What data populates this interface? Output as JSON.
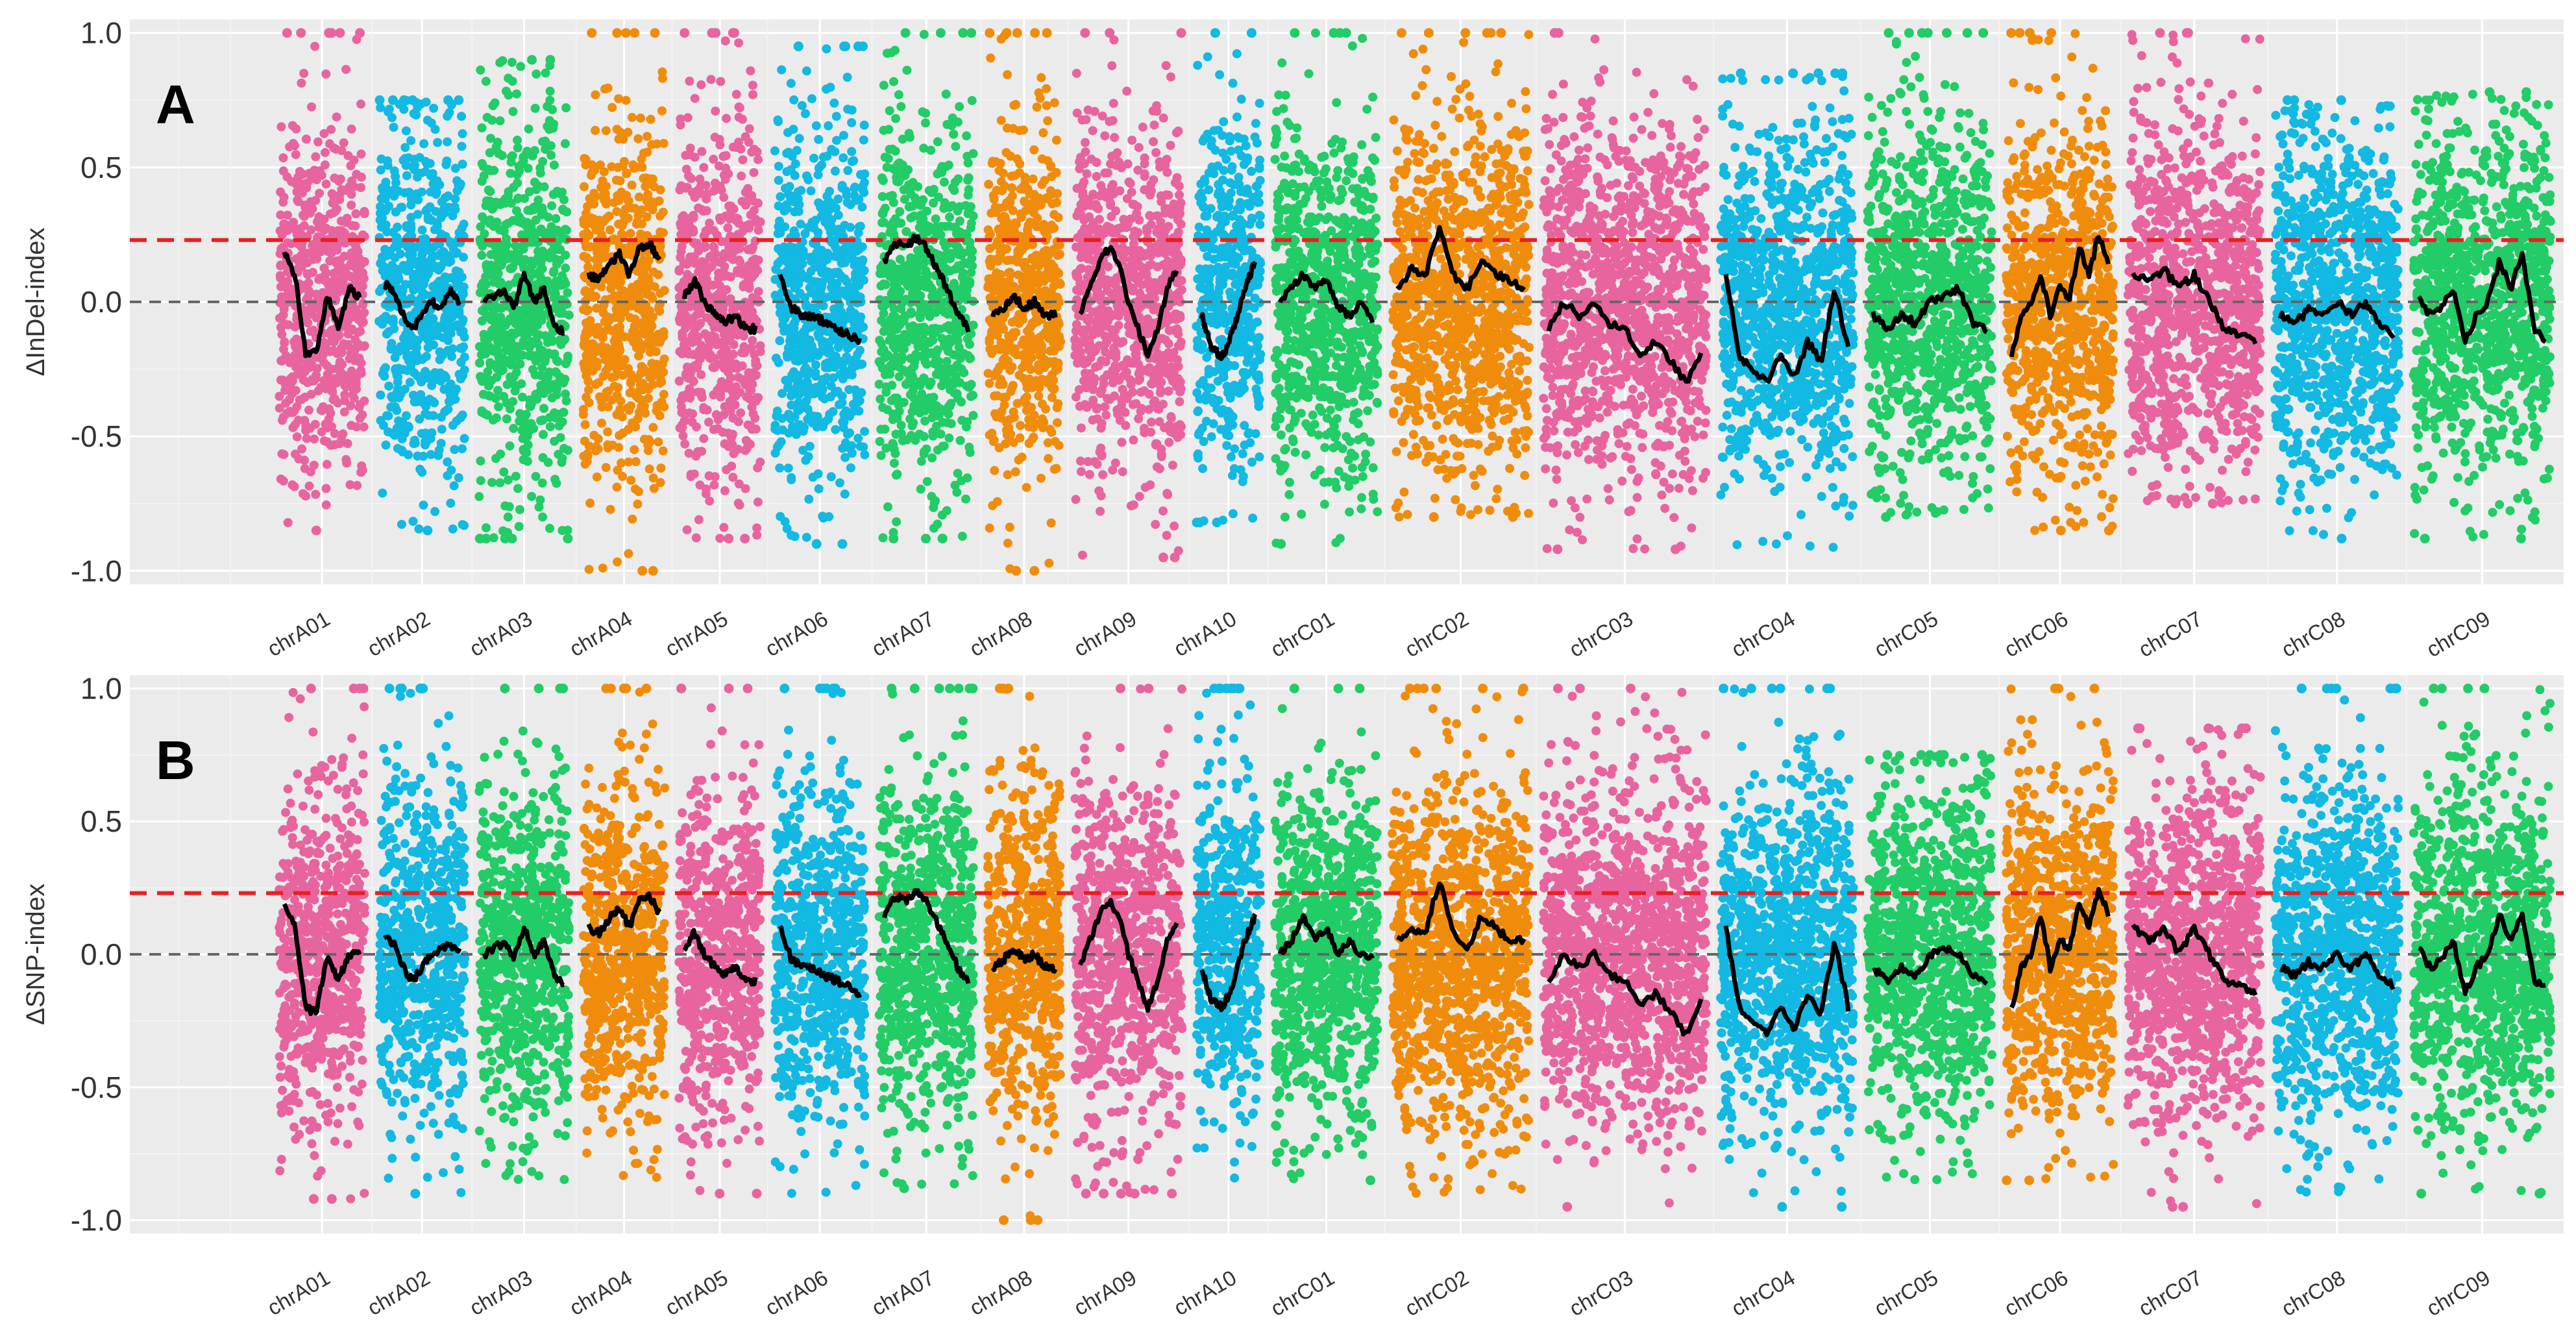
{
  "colors": {
    "pink": "#e8649e",
    "blue": "#12b9e2",
    "green": "#22cc66",
    "orange": "#f08c0c",
    "threshold": "#e82020",
    "zero_line": "#666666",
    "trend": "#000000"
  },
  "chart_data": [
    {
      "type": "scatter",
      "panel_label": "A",
      "ylabel": "ΔInDel-index",
      "xlabel": "",
      "ylim": [
        -1.05,
        1.05
      ],
      "yticks": [
        "1.0",
        "0.5",
        "0.0",
        "-0.5",
        "-1.0"
      ],
      "threshold": 0.23,
      "categories": [
        "chrA01",
        "chrA02",
        "chrA03",
        "chrA04",
        "chrA05",
        "chrA06",
        "chrA07",
        "chrA08",
        "chrA09",
        "chrA10",
        "chrC01",
        "chrC02",
        "chrC03",
        "chrC04",
        "chrC05",
        "chrC06",
        "chrC07",
        "chrC08",
        "chrC09"
      ],
      "series": [
        {
          "name": "chrA01",
          "color": "pink",
          "length": 1.0,
          "spread": [
            -0.85,
            1.0
          ],
          "trend": [
            0.18,
            0.1,
            -0.2,
            -0.18,
            0.02,
            -0.1,
            0.05,
            0.02
          ]
        },
        {
          "name": "chrA02",
          "color": "blue",
          "length": 1.0,
          "spread": [
            -0.85,
            0.75
          ],
          "trend": [
            0.07,
            0.04,
            -0.05,
            -0.1,
            -0.05,
            0.0,
            -0.02,
            0.05,
            0.0
          ]
        },
        {
          "name": "chrA03",
          "color": "green",
          "length": 1.05,
          "spread": [
            -0.88,
            0.9
          ],
          "trend": [
            0.0,
            0.02,
            0.05,
            -0.02,
            0.1,
            0.0,
            0.05,
            -0.08,
            -0.12
          ]
        },
        {
          "name": "chrA04",
          "color": "orange",
          "length": 0.95,
          "spread": [
            -1.0,
            1.0
          ],
          "trend": [
            0.1,
            0.08,
            0.13,
            0.18,
            0.1,
            0.2,
            0.22,
            0.15
          ]
        },
        {
          "name": "chrA05",
          "color": "pink",
          "length": 0.95,
          "spread": [
            -0.88,
            1.0
          ],
          "trend": [
            0.02,
            0.08,
            0.0,
            -0.05,
            -0.08,
            -0.05,
            -0.1,
            -0.1
          ]
        },
        {
          "name": "chrA06",
          "color": "blue",
          "length": 1.05,
          "spread": [
            -0.9,
            0.95
          ],
          "trend": [
            0.1,
            -0.02,
            -0.05,
            -0.05,
            -0.08,
            -0.1,
            -0.12,
            -0.15
          ]
        },
        {
          "name": "chrA07",
          "color": "green",
          "length": 1.1,
          "spread": [
            -0.88,
            1.0
          ],
          "trend": [
            0.15,
            0.22,
            0.2,
            0.24,
            0.2,
            0.12,
            0.05,
            -0.05,
            -0.1
          ]
        },
        {
          "name": "chrA08",
          "color": "orange",
          "length": 0.85,
          "spread": [
            -1.0,
            1.0
          ],
          "trend": [
            -0.05,
            -0.02,
            0.02,
            -0.02,
            0.0,
            -0.05,
            -0.05
          ]
        },
        {
          "name": "chrA09",
          "color": "pink",
          "length": 1.25,
          "spread": [
            -0.95,
            1.0
          ],
          "trend": [
            -0.05,
            0.05,
            0.15,
            0.2,
            0.15,
            0.0,
            -0.1,
            -0.2,
            -0.1,
            0.05,
            0.12
          ]
        },
        {
          "name": "chrA10",
          "color": "blue",
          "length": 0.75,
          "spread": [
            -0.82,
            1.0
          ],
          "trend": [
            -0.05,
            -0.18,
            -0.2,
            -0.1,
            0.05,
            0.15
          ]
        },
        {
          "name": "chrC01",
          "color": "green",
          "length": 1.2,
          "spread": [
            -0.9,
            1.0
          ],
          "trend": [
            0.0,
            0.05,
            0.1,
            0.05,
            0.08,
            -0.02,
            -0.05,
            0.0,
            -0.08
          ]
        },
        {
          "name": "chrC02",
          "color": "orange",
          "length": 1.6,
          "spread": [
            -0.8,
            1.0
          ],
          "trend": [
            0.05,
            0.12,
            0.1,
            0.28,
            0.1,
            0.05,
            0.15,
            0.1,
            0.08,
            0.05
          ]
        },
        {
          "name": "chrC03",
          "color": "pink",
          "length": 1.9,
          "spread": [
            -0.92,
            1.0
          ],
          "trend": [
            -0.1,
            0.0,
            -0.05,
            0.0,
            -0.08,
            -0.1,
            -0.2,
            -0.15,
            -0.22,
            -0.3,
            -0.2
          ]
        },
        {
          "name": "chrC04",
          "color": "blue",
          "length": 1.55,
          "spread": [
            -0.92,
            0.85
          ],
          "trend": [
            0.1,
            -0.2,
            -0.25,
            -0.3,
            -0.2,
            -0.28,
            -0.15,
            -0.22,
            0.05,
            -0.18
          ]
        },
        {
          "name": "chrC05",
          "color": "green",
          "length": 1.45,
          "spread": [
            -0.8,
            1.0
          ],
          "trend": [
            -0.05,
            -0.1,
            -0.05,
            -0.08,
            0.0,
            0.02,
            0.05,
            -0.08,
            -0.1
          ]
        },
        {
          "name": "chrC06",
          "color": "orange",
          "length": 1.25,
          "spread": [
            -0.85,
            1.0
          ],
          "trend": [
            -0.2,
            -0.05,
            0.0,
            0.1,
            -0.05,
            0.05,
            0.02,
            0.2,
            0.1,
            0.25,
            0.15
          ]
        },
        {
          "name": "chrC07",
          "color": "pink",
          "length": 1.55,
          "spread": [
            -0.75,
            1.0
          ],
          "trend": [
            0.1,
            0.08,
            0.12,
            0.05,
            0.1,
            0.0,
            -0.1,
            -0.12,
            -0.15
          ]
        },
        {
          "name": "chrC08",
          "color": "blue",
          "length": 1.45,
          "spread": [
            -0.88,
            0.75
          ],
          "trend": [
            -0.05,
            -0.08,
            -0.03,
            -0.05,
            0.0,
            -0.05,
            0.0,
            -0.08,
            -0.12
          ]
        },
        {
          "name": "chrC09",
          "color": "green",
          "length": 1.6,
          "spread": [
            -0.88,
            0.78
          ],
          "trend": [
            0.02,
            -0.05,
            -0.02,
            0.05,
            -0.15,
            -0.05,
            0.0,
            0.15,
            0.05,
            0.18,
            -0.1,
            -0.15
          ]
        }
      ]
    },
    {
      "type": "scatter",
      "panel_label": "B",
      "ylabel": "ΔSNP-index",
      "xlabel": "",
      "ylim": [
        -1.05,
        1.05
      ],
      "yticks": [
        "1.0",
        "0.5",
        "0.0",
        "-0.5",
        "-1.0"
      ],
      "threshold": 0.23,
      "categories": [
        "chrA01",
        "chrA02",
        "chrA03",
        "chrA04",
        "chrA05",
        "chrA06",
        "chrA07",
        "chrA08",
        "chrA09",
        "chrA10",
        "chrC01",
        "chrC02",
        "chrC03",
        "chrC04",
        "chrC05",
        "chrC06",
        "chrC07",
        "chrC08",
        "chrC09"
      ],
      "series": [
        {
          "name": "chrA01",
          "color": "pink",
          "length": 1.0,
          "spread": [
            -0.92,
            1.0
          ],
          "trend": [
            0.18,
            0.1,
            -0.2,
            -0.22,
            0.0,
            -0.1,
            0.0,
            0.0
          ]
        },
        {
          "name": "chrA02",
          "color": "blue",
          "length": 1.0,
          "spread": [
            -0.9,
            1.0
          ],
          "trend": [
            0.07,
            0.04,
            -0.05,
            -0.1,
            -0.05,
            0.0,
            0.02,
            0.03,
            0.02
          ]
        },
        {
          "name": "chrA03",
          "color": "green",
          "length": 1.05,
          "spread": [
            -0.85,
            1.0
          ],
          "trend": [
            0.0,
            0.02,
            0.05,
            -0.02,
            0.1,
            0.0,
            0.05,
            -0.08,
            -0.12
          ]
        },
        {
          "name": "chrA04",
          "color": "orange",
          "length": 0.95,
          "spread": [
            -0.85,
            1.0
          ],
          "trend": [
            0.1,
            0.08,
            0.13,
            0.18,
            0.1,
            0.2,
            0.22,
            0.15
          ]
        },
        {
          "name": "chrA05",
          "color": "pink",
          "length": 0.95,
          "spread": [
            -0.9,
            1.0
          ],
          "trend": [
            0.02,
            0.08,
            0.0,
            -0.05,
            -0.08,
            -0.05,
            -0.1,
            -0.1
          ]
        },
        {
          "name": "chrA06",
          "color": "blue",
          "length": 1.05,
          "spread": [
            -0.9,
            1.0
          ],
          "trend": [
            0.1,
            -0.02,
            -0.05,
            -0.05,
            -0.08,
            -0.1,
            -0.12,
            -0.15
          ]
        },
        {
          "name": "chrA07",
          "color": "green",
          "length": 1.1,
          "spread": [
            -0.88,
            1.0
          ],
          "trend": [
            0.15,
            0.22,
            0.2,
            0.24,
            0.2,
            0.12,
            0.05,
            -0.05,
            -0.1
          ]
        },
        {
          "name": "chrA08",
          "color": "orange",
          "length": 0.85,
          "spread": [
            -1.0,
            1.0
          ],
          "trend": [
            -0.05,
            -0.02,
            0.02,
            -0.02,
            0.0,
            -0.05,
            -0.05
          ]
        },
        {
          "name": "chrA09",
          "color": "pink",
          "length": 1.25,
          "spread": [
            -0.9,
            1.0
          ],
          "trend": [
            -0.05,
            0.05,
            0.15,
            0.2,
            0.15,
            0.0,
            -0.1,
            -0.2,
            -0.1,
            0.05,
            0.12
          ]
        },
        {
          "name": "chrA10",
          "color": "blue",
          "length": 0.75,
          "spread": [
            -0.88,
            1.0
          ],
          "trend": [
            -0.05,
            -0.18,
            -0.2,
            -0.1,
            0.05,
            0.15
          ]
        },
        {
          "name": "chrC01",
          "color": "green",
          "length": 1.2,
          "spread": [
            -0.85,
            1.0
          ],
          "trend": [
            0.0,
            0.05,
            0.15,
            0.05,
            0.1,
            0.0,
            0.05,
            0.0,
            -0.02
          ]
        },
        {
          "name": "chrC02",
          "color": "orange",
          "length": 1.6,
          "spread": [
            -0.9,
            1.0
          ],
          "trend": [
            0.05,
            0.1,
            0.08,
            0.28,
            0.08,
            0.02,
            0.15,
            0.1,
            0.05,
            0.05
          ]
        },
        {
          "name": "chrC03",
          "color": "pink",
          "length": 1.9,
          "spread": [
            -0.95,
            1.0
          ],
          "trend": [
            -0.1,
            0.0,
            -0.05,
            0.0,
            -0.08,
            -0.1,
            -0.2,
            -0.15,
            -0.22,
            -0.3,
            -0.18
          ]
        },
        {
          "name": "chrC04",
          "color": "blue",
          "length": 1.55,
          "spread": [
            -0.95,
            1.0
          ],
          "trend": [
            0.1,
            -0.2,
            -0.25,
            -0.3,
            -0.2,
            -0.28,
            -0.15,
            -0.22,
            0.05,
            -0.2
          ]
        },
        {
          "name": "chrC05",
          "color": "green",
          "length": 1.45,
          "spread": [
            -0.85,
            0.75
          ],
          "trend": [
            -0.05,
            -0.1,
            -0.05,
            -0.08,
            0.0,
            0.02,
            0.0,
            -0.08,
            -0.1
          ]
        },
        {
          "name": "chrC06",
          "color": "orange",
          "length": 1.25,
          "spread": [
            -0.85,
            1.0
          ],
          "trend": [
            -0.2,
            -0.05,
            0.0,
            0.15,
            -0.05,
            0.05,
            0.02,
            0.2,
            0.1,
            0.25,
            0.15
          ]
        },
        {
          "name": "chrC07",
          "color": "pink",
          "length": 1.55,
          "spread": [
            -0.95,
            0.85
          ],
          "trend": [
            0.1,
            0.05,
            0.1,
            0.0,
            0.1,
            0.0,
            -0.1,
            -0.12,
            -0.15
          ]
        },
        {
          "name": "chrC08",
          "color": "blue",
          "length": 1.45,
          "spread": [
            -0.9,
            1.0
          ],
          "trend": [
            -0.05,
            -0.08,
            -0.03,
            -0.05,
            0.0,
            -0.05,
            0.0,
            -0.08,
            -0.12
          ]
        },
        {
          "name": "chrC09",
          "color": "green",
          "length": 1.6,
          "spread": [
            -0.9,
            1.0
          ],
          "trend": [
            0.02,
            -0.05,
            -0.02,
            0.05,
            -0.15,
            -0.05,
            0.0,
            0.15,
            0.05,
            0.15,
            -0.1,
            -0.12
          ]
        }
      ]
    }
  ]
}
